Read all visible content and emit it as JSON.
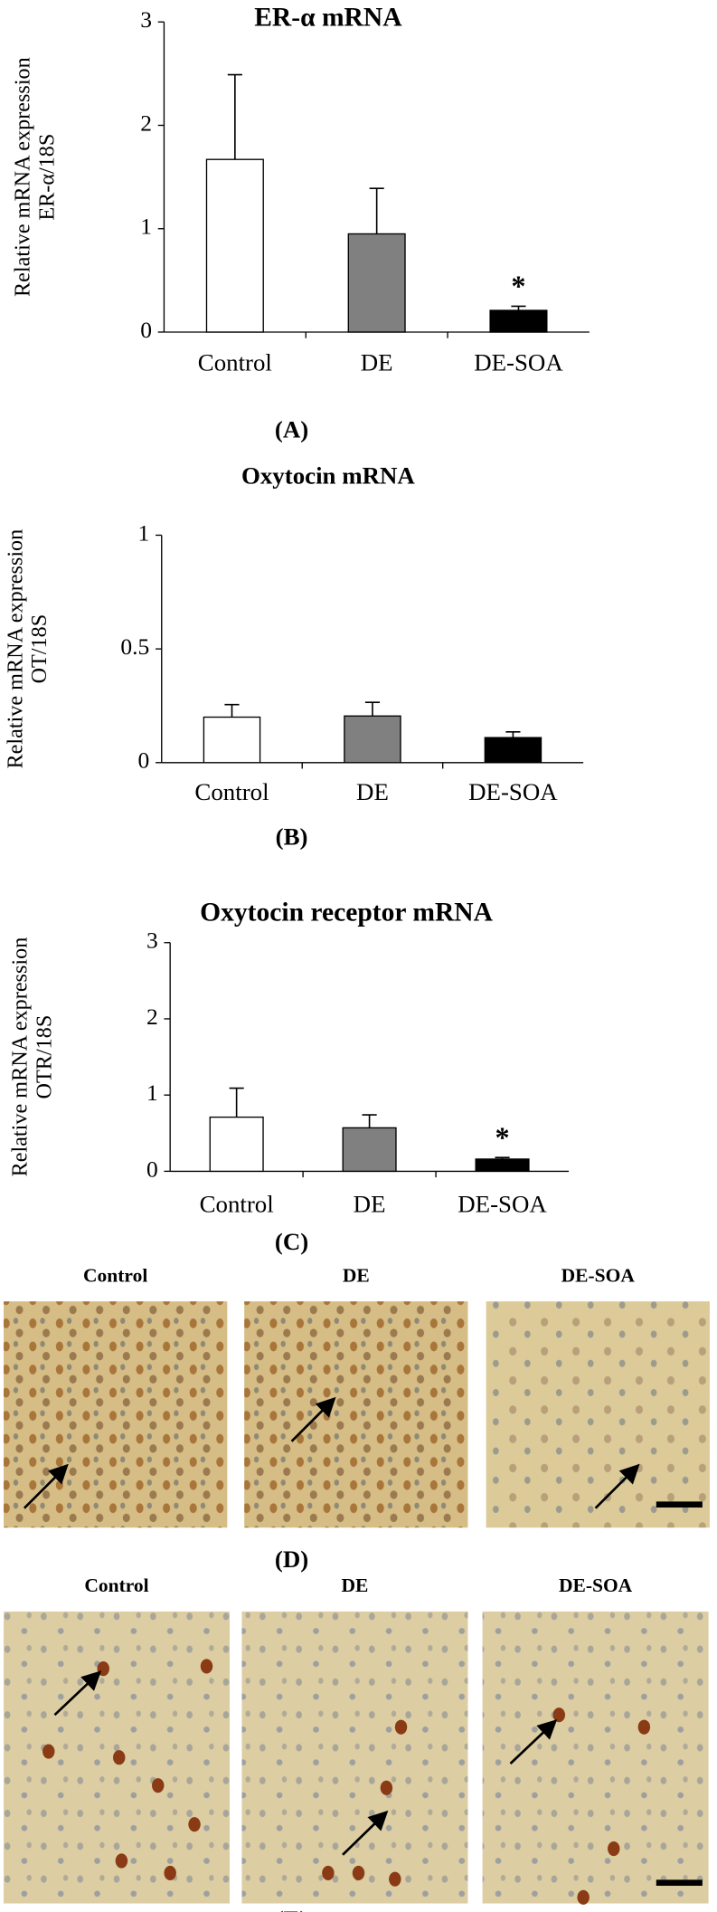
{
  "chart_data": [
    {
      "type": "bar",
      "title": "ER-α mRNA",
      "ylabel": [
        "Relative mRNA expression",
        "ER-α/18S"
      ],
      "categories": [
        "Control",
        "DE",
        "DE-SOA"
      ],
      "values": [
        1.67,
        0.95,
        0.21
      ],
      "errors": [
        0.82,
        0.44,
        0.04
      ],
      "colors": [
        "#ffffff",
        "#808080",
        "#000000"
      ],
      "annotations": [
        null,
        null,
        "*"
      ],
      "ylim": [
        0,
        3
      ],
      "yticks": [
        0,
        1,
        2,
        3
      ],
      "panel_label": "(A)"
    },
    {
      "type": "bar",
      "title": "Oxytocin mRNA",
      "ylabel": [
        "Relative mRNA expression",
        "OT/18S"
      ],
      "categories": [
        "Control",
        "DE",
        "DE-SOA"
      ],
      "values": [
        0.2,
        0.205,
        0.11
      ],
      "errors": [
        0.055,
        0.06,
        0.025
      ],
      "colors": [
        "#ffffff",
        "#808080",
        "#000000"
      ],
      "annotations": [
        null,
        null,
        null
      ],
      "ylim": [
        0,
        1
      ],
      "yticks": [
        0,
        0.5,
        1
      ],
      "panel_label": "(B)"
    },
    {
      "type": "bar",
      "title": "Oxytocin receptor mRNA",
      "ylabel": [
        "Relative mRNA expression",
        "OTR/18S"
      ],
      "categories": [
        "Control",
        "DE",
        "DE-SOA"
      ],
      "values": [
        0.71,
        0.57,
        0.16
      ],
      "errors": [
        0.38,
        0.17,
        0.02
      ],
      "colors": [
        "#ffffff",
        "#808080",
        "#000000"
      ],
      "annotations": [
        null,
        null,
        "*"
      ],
      "ylim": [
        0,
        3
      ],
      "yticks": [
        0,
        1,
        2,
        3
      ],
      "panel_label": "(C)"
    }
  ],
  "micrographs": [
    {
      "labels": [
        "Control",
        "DE",
        "DE-SOA"
      ],
      "panel_label": "(D)"
    },
    {
      "labels": [
        "Control",
        "DE",
        "DE-SOA"
      ],
      "panel_label": "(E)"
    }
  ]
}
